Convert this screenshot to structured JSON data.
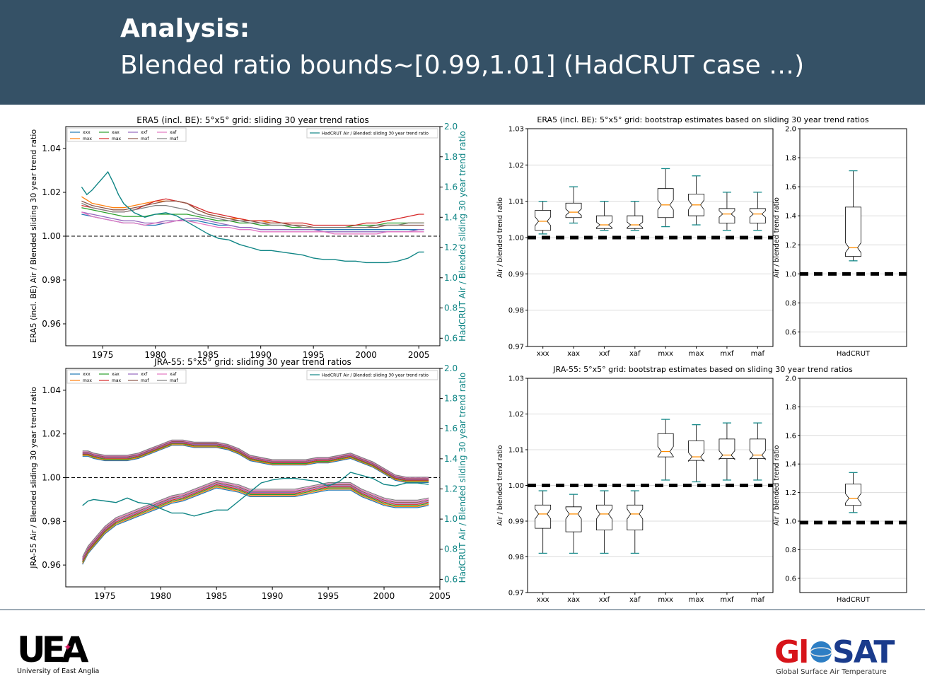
{
  "header": {
    "line1": "Analysis:",
    "line2": "Blended ratio bounds~[0.99,1.01] (HadCRUT case …)"
  },
  "colors": {
    "banner": "#355166",
    "hadcrut": "#0f8585",
    "xxx": "#1f77b4",
    "mxx": "#ff7f0e",
    "xax": "#2ca02c",
    "max": "#d62728",
    "xxf": "#9467bd",
    "mxf": "#8c564b",
    "xaf": "#e377c2",
    "maf": "#7f7f7f"
  },
  "legend_series": [
    "xxx",
    "mxx",
    "xax",
    "max",
    "xxf",
    "mxf",
    "xaf",
    "maf"
  ],
  "chart_data": [
    {
      "id": "era5-lines",
      "type": "line",
      "title": "ERA5 (incl. BE): 5°x5° grid: sliding 30 year trend ratios",
      "ylabel": "ERA5 (incl. BE) Air / Blended sliding 30 year trend ratio",
      "y2label": "HadCRUT Air / Blended sliding 30 year trend ratio",
      "legend2": "HadCRUT Air / Blended: sliding 30 year trend ratio",
      "xlim": [
        1971.5,
        2007
      ],
      "ylim": [
        0.95,
        1.05
      ],
      "y2lim": [
        0.55,
        2.0
      ],
      "xticks": [
        1975,
        1980,
        1985,
        1990,
        1995,
        2000,
        2005
      ],
      "yticks": [
        "0.96",
        "0.98",
        "1.00",
        "1.02",
        "1.04"
      ],
      "y2ticks": [
        "0.6",
        "0.8",
        "1.0",
        "1.2",
        "1.4",
        "1.6",
        "1.8",
        "2.0"
      ],
      "x": [
        1973,
        1974,
        1975,
        1976,
        1977,
        1978,
        1979,
        1980,
        1981,
        1982,
        1983,
        1984,
        1985,
        1986,
        1987,
        1988,
        1989,
        1990,
        1991,
        1992,
        1993,
        1994,
        1995,
        1996,
        1997,
        1998,
        1999,
        2000,
        2001,
        2002,
        2003,
        2004,
        2005,
        2005.5
      ],
      "series": [
        {
          "name": "xxx",
          "values": [
            1.01,
            1.009,
            1.008,
            1.007,
            1.006,
            1.006,
            1.005,
            1.005,
            1.006,
            1.007,
            1.007,
            1.007,
            1.006,
            1.005,
            1.005,
            1.004,
            1.004,
            1.003,
            1.003,
            1.003,
            1.003,
            1.003,
            1.003,
            1.003,
            1.003,
            1.003,
            1.003,
            1.003,
            1.003,
            1.003,
            1.003,
            1.003,
            1.003,
            1.003
          ]
        },
        {
          "name": "mxx",
          "values": [
            1.018,
            1.015,
            1.014,
            1.013,
            1.013,
            1.014,
            1.015,
            1.016,
            1.016,
            1.016,
            1.015,
            1.012,
            1.01,
            1.009,
            1.008,
            1.008,
            1.007,
            1.007,
            1.006,
            1.006,
            1.005,
            1.005,
            1.004,
            1.004,
            1.004,
            1.004,
            1.004,
            1.004,
            1.005,
            1.005,
            1.005,
            1.006,
            1.006,
            1.006
          ]
        },
        {
          "name": "xax",
          "values": [
            1.013,
            1.012,
            1.011,
            1.01,
            1.009,
            1.009,
            1.009,
            1.01,
            1.01,
            1.01,
            1.01,
            1.009,
            1.008,
            1.007,
            1.007,
            1.006,
            1.006,
            1.005,
            1.005,
            1.005,
            1.004,
            1.004,
            1.004,
            1.004,
            1.004,
            1.004,
            1.005,
            1.005,
            1.005,
            1.006,
            1.006,
            1.006,
            1.006,
            1.006
          ]
        },
        {
          "name": "max",
          "values": [
            1.014,
            1.013,
            1.012,
            1.011,
            1.011,
            1.012,
            1.014,
            1.016,
            1.017,
            1.016,
            1.015,
            1.013,
            1.011,
            1.01,
            1.009,
            1.008,
            1.007,
            1.007,
            1.007,
            1.006,
            1.006,
            1.006,
            1.005,
            1.005,
            1.005,
            1.005,
            1.005,
            1.006,
            1.006,
            1.007,
            1.008,
            1.009,
            1.01,
            1.01
          ]
        },
        {
          "name": "xxf",
          "values": [
            1.011,
            1.01,
            1.009,
            1.008,
            1.007,
            1.007,
            1.006,
            1.006,
            1.007,
            1.007,
            1.008,
            1.008,
            1.007,
            1.006,
            1.005,
            1.004,
            1.004,
            1.003,
            1.003,
            1.003,
            1.003,
            1.003,
            1.003,
            1.002,
            1.002,
            1.002,
            1.002,
            1.002,
            1.002,
            1.002,
            1.002,
            1.002,
            1.003,
            1.003
          ]
        },
        {
          "name": "mxf",
          "values": [
            1.016,
            1.014,
            1.013,
            1.012,
            1.012,
            1.013,
            1.014,
            1.015,
            1.016,
            1.016,
            1.015,
            1.012,
            1.01,
            1.009,
            1.008,
            1.007,
            1.007,
            1.006,
            1.006,
            1.006,
            1.005,
            1.005,
            1.004,
            1.004,
            1.004,
            1.004,
            1.004,
            1.004,
            1.004,
            1.005,
            1.005,
            1.005,
            1.005,
            1.005
          ]
        },
        {
          "name": "xaf",
          "values": [
            1.011,
            1.009,
            1.008,
            1.007,
            1.006,
            1.006,
            1.005,
            1.006,
            1.006,
            1.007,
            1.007,
            1.006,
            1.005,
            1.004,
            1.004,
            1.003,
            1.003,
            1.002,
            1.002,
            1.002,
            1.002,
            1.002,
            1.002,
            1.002,
            1.001,
            1.001,
            1.001,
            1.001,
            1.001,
            1.002,
            1.002,
            1.002,
            1.002,
            1.002
          ]
        },
        {
          "name": "maf",
          "values": [
            1.015,
            1.013,
            1.012,
            1.011,
            1.011,
            1.012,
            1.013,
            1.014,
            1.014,
            1.013,
            1.012,
            1.01,
            1.009,
            1.008,
            1.007,
            1.007,
            1.006,
            1.006,
            1.005,
            1.005,
            1.005,
            1.004,
            1.004,
            1.004,
            1.004,
            1.004,
            1.004,
            1.004,
            1.005,
            1.005,
            1.005,
            1.006,
            1.006,
            1.006
          ]
        }
      ],
      "hadcrut": {
        "x": [
          1973,
          1973.5,
          1974,
          1974.5,
          1975,
          1975.5,
          1976,
          1976.5,
          1977,
          1978,
          1979,
          1980,
          1981,
          1982,
          1983,
          1984,
          1985,
          1986,
          1987,
          1988,
          1989,
          1990,
          1991,
          1992,
          1993,
          1994,
          1995,
          1996,
          1997,
          1998,
          1999,
          2000,
          2001,
          2002,
          2003,
          2004,
          2005,
          2005.5
        ],
        "values": [
          1.6,
          1.55,
          1.58,
          1.62,
          1.66,
          1.7,
          1.63,
          1.55,
          1.49,
          1.43,
          1.4,
          1.42,
          1.43,
          1.41,
          1.37,
          1.33,
          1.29,
          1.26,
          1.25,
          1.22,
          1.2,
          1.18,
          1.18,
          1.17,
          1.16,
          1.15,
          1.13,
          1.12,
          1.12,
          1.11,
          1.11,
          1.1,
          1.1,
          1.1,
          1.11,
          1.13,
          1.17,
          1.17
        ]
      }
    },
    {
      "id": "jra55-lines",
      "type": "line",
      "title": "JRA-55: 5°x5° grid: sliding 30 year trend ratios",
      "ylabel": "JRA-55 Air / Blended sliding 30 year trend ratio",
      "y2label": "HadCRUT Air / Blended sliding 30 year trend ratio",
      "legend2": "HadCRUT Air / Blended: sliding 30 year trend ratio",
      "xlim": [
        1971.5,
        2005
      ],
      "ylim": [
        0.95,
        1.05
      ],
      "y2lim": [
        0.55,
        2.0
      ],
      "xticks": [
        1975,
        1980,
        1985,
        1990,
        1995,
        2000,
        2005
      ],
      "yticks": [
        "0.96",
        "0.98",
        "1.00",
        "1.02",
        "1.04"
      ],
      "y2ticks": [
        "0.6",
        "0.8",
        "1.0",
        "1.2",
        "1.4",
        "1.6",
        "1.8",
        "2.0"
      ],
      "x": [
        1973,
        1973.5,
        1974,
        1975,
        1976,
        1977,
        1978,
        1979,
        1980,
        1981,
        1982,
        1983,
        1984,
        1985,
        1986,
        1987,
        1988,
        1989,
        1990,
        1991,
        1992,
        1993,
        1994,
        1995,
        1996,
        1997,
        1998,
        1999,
        2000,
        2001,
        2002,
        2003,
        2004
      ],
      "upper": [
        1.011,
        1.011,
        1.01,
        1.009,
        1.009,
        1.009,
        1.01,
        1.012,
        1.014,
        1.016,
        1.016,
        1.015,
        1.015,
        1.015,
        1.014,
        1.012,
        1.009,
        1.008,
        1.007,
        1.007,
        1.007,
        1.007,
        1.008,
        1.008,
        1.009,
        1.01,
        1.008,
        1.006,
        1.003,
        1.0,
        0.999,
        0.999,
        0.999
      ],
      "lower": [
        0.962,
        0.967,
        0.97,
        0.976,
        0.98,
        0.982,
        0.984,
        0.986,
        0.988,
        0.99,
        0.991,
        0.993,
        0.995,
        0.997,
        0.996,
        0.995,
        0.993,
        0.993,
        0.993,
        0.993,
        0.993,
        0.994,
        0.995,
        0.996,
        0.996,
        0.996,
        0.993,
        0.991,
        0.989,
        0.988,
        0.988,
        0.988,
        0.989
      ],
      "hadcrut": {
        "x": [
          1973,
          1973.5,
          1974,
          1975,
          1976,
          1977,
          1978,
          1979,
          1980,
          1981,
          1982,
          1983,
          1984,
          1985,
          1986,
          1987,
          1988,
          1989,
          1990,
          1991,
          1992,
          1993,
          1994,
          1995,
          1996,
          1997,
          1998,
          1999,
          2000,
          2001,
          2002,
          2003,
          2004
        ],
        "values": [
          1.09,
          1.12,
          1.13,
          1.12,
          1.11,
          1.14,
          1.11,
          1.1,
          1.07,
          1.04,
          1.04,
          1.02,
          1.04,
          1.06,
          1.06,
          1.12,
          1.18,
          1.24,
          1.26,
          1.27,
          1.27,
          1.26,
          1.25,
          1.22,
          1.25,
          1.31,
          1.29,
          1.27,
          1.23,
          1.22,
          1.24,
          1.24,
          1.23
        ]
      }
    },
    {
      "id": "era5-boxes",
      "type": "box",
      "title": "ERA5 (incl. BE): 5°x5° grid: bootstrap estimates based on sliding 30 year trend ratios",
      "ylabel": "Air / blended trend ratio",
      "ylim": [
        0.97,
        1.03
      ],
      "yticks": [
        "0.97",
        "0.98",
        "0.99",
        "1.00",
        "1.01",
        "1.02",
        "1.03"
      ],
      "reference": 1.0,
      "boxes": [
        {
          "label": "xxx",
          "whislo": 1.001,
          "q1": 1.002,
          "med": 1.0045,
          "q3": 1.0075,
          "whishi": 1.01
        },
        {
          "label": "xax",
          "whislo": 1.004,
          "q1": 1.0055,
          "med": 1.007,
          "q3": 1.0095,
          "whishi": 1.014
        },
        {
          "label": "xxf",
          "whislo": 1.002,
          "q1": 1.0025,
          "med": 1.0035,
          "q3": 1.006,
          "whishi": 1.01
        },
        {
          "label": "xaf",
          "whislo": 1.002,
          "q1": 1.0025,
          "med": 1.0035,
          "q3": 1.006,
          "whishi": 1.01
        },
        {
          "label": "mxx",
          "whislo": 1.003,
          "q1": 1.0055,
          "med": 1.009,
          "q3": 1.0135,
          "whishi": 1.019
        },
        {
          "label": "max",
          "whislo": 1.0035,
          "q1": 1.006,
          "med": 1.009,
          "q3": 1.012,
          "whishi": 1.017
        },
        {
          "label": "mxf",
          "whislo": 1.002,
          "q1": 1.004,
          "med": 1.0065,
          "q3": 1.008,
          "whishi": 1.0125
        },
        {
          "label": "maf",
          "whislo": 1.002,
          "q1": 1.004,
          "med": 1.0065,
          "q3": 1.008,
          "whishi": 1.0125
        }
      ],
      "hadcrut_box": {
        "ylabel": "Air / blended trend ratio",
        "ylim": [
          0.5,
          2.0
        ],
        "yticks": [
          "0.6",
          "0.8",
          "1.0",
          "1.2",
          "1.4",
          "1.6",
          "1.8",
          "2.0"
        ],
        "reference": 1.0,
        "label": "HadCRUT",
        "whislo": 1.09,
        "q1": 1.12,
        "med": 1.18,
        "q3": 1.46,
        "whishi": 1.71
      }
    },
    {
      "id": "jra55-boxes",
      "type": "box",
      "title": "JRA-55: 5°x5° grid: bootstrap estimates based on sliding 30 year trend ratios",
      "ylabel": "Air / blended trend ratio",
      "ylim": [
        0.97,
        1.03
      ],
      "yticks": [
        "0.97",
        "0.98",
        "0.99",
        "1.00",
        "1.01",
        "1.02",
        "1.03"
      ],
      "reference": 1.0,
      "boxes": [
        {
          "label": "xxx",
          "whislo": 0.981,
          "q1": 0.988,
          "med": 0.992,
          "q3": 0.9945,
          "whishi": 0.9985
        },
        {
          "label": "xax",
          "whislo": 0.981,
          "q1": 0.987,
          "med": 0.992,
          "q3": 0.994,
          "whishi": 0.9975
        },
        {
          "label": "xxf",
          "whislo": 0.981,
          "q1": 0.9875,
          "med": 0.992,
          "q3": 0.9945,
          "whishi": 0.9985
        },
        {
          "label": "xaf",
          "whislo": 0.981,
          "q1": 0.9875,
          "med": 0.992,
          "q3": 0.9945,
          "whishi": 0.9985
        },
        {
          "label": "mxx",
          "whislo": 1.0015,
          "q1": 1.008,
          "med": 1.0095,
          "q3": 1.0145,
          "whishi": 1.0185
        },
        {
          "label": "max",
          "whislo": 1.001,
          "q1": 1.007,
          "med": 1.008,
          "q3": 1.0125,
          "whishi": 1.017
        },
        {
          "label": "mxf",
          "whislo": 1.0015,
          "q1": 1.0075,
          "med": 1.0085,
          "q3": 1.013,
          "whishi": 1.0175
        },
        {
          "label": "maf",
          "whislo": 1.0015,
          "q1": 1.0075,
          "med": 1.0085,
          "q3": 1.013,
          "whishi": 1.0175
        }
      ],
      "hadcrut_box": {
        "ylabel": "Air / blended trend ratio",
        "ylim": [
          0.5,
          2.0
        ],
        "yticks": [
          "0.6",
          "0.8",
          "1.0",
          "1.2",
          "1.4",
          "1.6",
          "1.8",
          "2.0"
        ],
        "reference": 0.99,
        "label": "HadCRUT",
        "whislo": 1.06,
        "q1": 1.11,
        "med": 1.16,
        "q3": 1.26,
        "whishi": 1.34
      }
    }
  ],
  "footer": {
    "uea_wordmark": "UEA",
    "uea_name": "University of East Anglia",
    "glosat_wordmark": "GloSAT",
    "glosat_tagline": "Global Surface Air Temperature"
  }
}
